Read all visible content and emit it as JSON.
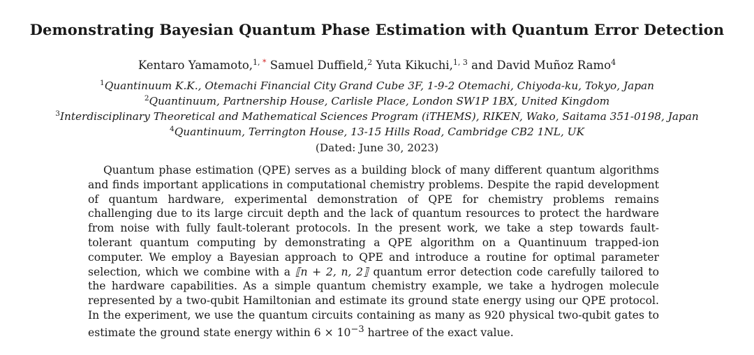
{
  "paper": {
    "title": "Demonstrating Bayesian Quantum Phase Estimation with Quantum Error Detection",
    "authors": [
      {
        "name": "Kentaro Yamamoto,",
        "affil": "1, ",
        "star": "*"
      },
      {
        "name": "Samuel Duffield,",
        "affil": "2"
      },
      {
        "name": "Yuta Kikuchi,",
        "affil": "1, 3"
      },
      {
        "name": "and David Muñoz Ramo",
        "affil": "4"
      }
    ],
    "affiliations": [
      {
        "num": "1",
        "text": "Quantinuum K.K., Otemachi Financial City Grand Cube 3F, 1-9-2 Otemachi, Chiyoda-ku, Tokyo, Japan"
      },
      {
        "num": "2",
        "text": "Quantinuum, Partnership House, Carlisle Place, London SW1P 1BX, United Kingdom"
      },
      {
        "num": "3",
        "text": "Interdisciplinary Theoretical and Mathematical Sciences Program (iTHEMS), RIKEN, Wako, Saitama 351-0198, Japan"
      },
      {
        "num": "4",
        "text": "Quantinuum, Terrington House, 13-15 Hills Road, Cambridge CB2 1NL, UK"
      }
    ],
    "dated": "(Dated: June 30, 2023)",
    "abstract": {
      "part1": "Quantum phase estimation (QPE) serves as a building block of many different quantum algorithms and finds important applications in computational chemistry problems. Despite the rapid development of quantum hardware, experimental demonstration of QPE for chemistry problems remains challenging due to its large circuit depth and the lack of quantum resources to protect the hardware from noise with fully fault-tolerant protocols. In the present work, we take a step towards fault-tolerant quantum computing by demonstrating a QPE algorithm on a Quantinuum trapped-ion computer. We employ a Bayesian approach to QPE and introduce a routine for optimal parameter selection, which we combine with a ",
      "code_notation": "⟦n + 2, n, 2⟧",
      "part2": " quantum error detection code carefully tailored to the hardware capabilities. As a simple quantum chemistry example, we take a hydrogen molecule represented by a two-qubit Hamiltonian and estimate its ground state energy using our QPE protocol. In the experiment, we use the quantum circuits containing as many as 920 physical two-qubit gates to estimate the ground state energy within ",
      "error_bound": "6 × 10",
      "error_exp": "−3",
      "part3": " hartree of the exact value."
    }
  }
}
